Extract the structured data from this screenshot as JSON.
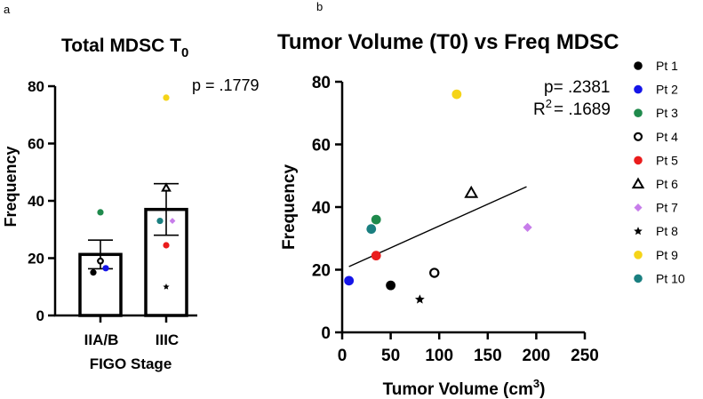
{
  "panel_labels": {
    "a": "a",
    "b": "b"
  },
  "chart_data": [
    {
      "type": "bar",
      "title": "Total MDSC T",
      "title_subscript": "0",
      "xlabel": "FIGO Stage",
      "ylabel": "Frequency",
      "ylim": [
        0,
        80
      ],
      "yticks": [
        "0",
        "20",
        "40",
        "60",
        "80"
      ],
      "categories": [
        "IIA/B",
        "IIIC"
      ],
      "values": [
        21.3,
        37
      ],
      "errors": [
        5,
        9
      ],
      "p_value_text": "p = .1779",
      "points": [
        {
          "patient": "Pt 1",
          "group": 0,
          "y": 15
        },
        {
          "patient": "Pt 2",
          "group": 0,
          "y": 16.5
        },
        {
          "patient": "Pt 3",
          "group": 0,
          "y": 36
        },
        {
          "patient": "Pt 4",
          "group": 0,
          "y": 19
        },
        {
          "patient": "Pt 5",
          "group": 1,
          "y": 24.5
        },
        {
          "patient": "Pt 6",
          "group": 1,
          "y": 44.5
        },
        {
          "patient": "Pt 7",
          "group": 1,
          "y": 33
        },
        {
          "patient": "Pt 8",
          "group": 1,
          "y": 10
        },
        {
          "patient": "Pt 9",
          "group": 1,
          "y": 76
        },
        {
          "patient": "Pt 10",
          "group": 1,
          "y": 33
        }
      ]
    },
    {
      "type": "scatter",
      "title": "Tumor Volume (T0) vs Freq MDSC",
      "xlabel": "Tumor Volume (cm",
      "xlabel_superscript": "3",
      "xlabel_suffix": ")",
      "ylabel": "Frequency",
      "xlim": [
        0,
        250
      ],
      "ylim": [
        0,
        80
      ],
      "xticks": [
        "0",
        "50",
        "100",
        "150",
        "200",
        "250"
      ],
      "yticks": [
        "0",
        "20",
        "40",
        "60",
        "80"
      ],
      "p_value_text": "p= .2381",
      "r2_label": "R",
      "r2_superscript": "2",
      "r2_value_text": "= .1689",
      "regression": {
        "x": [
          7,
          190
        ],
        "y": [
          21,
          46.5
        ]
      },
      "points": [
        {
          "patient": "Pt 1",
          "x": 50,
          "y": 15
        },
        {
          "patient": "Pt 2",
          "x": 7,
          "y": 16.5
        },
        {
          "patient": "Pt 3",
          "x": 35,
          "y": 36
        },
        {
          "patient": "Pt 4",
          "x": 95,
          "y": 19
        },
        {
          "patient": "Pt 5",
          "x": 35,
          "y": 24.5
        },
        {
          "patient": "Pt 6",
          "x": 133,
          "y": 44.5
        },
        {
          "patient": "Pt 7",
          "x": 191,
          "y": 33.5
        },
        {
          "patient": "Pt 8",
          "x": 80,
          "y": 10.5
        },
        {
          "patient": "Pt 9",
          "x": 118,
          "y": 76
        },
        {
          "patient": "Pt 10",
          "x": 30,
          "y": 33
        }
      ]
    }
  ],
  "legend": [
    {
      "label": "Pt 1",
      "marker": "circle",
      "color": "#000000"
    },
    {
      "label": "Pt 2",
      "marker": "circle",
      "color": "#1515e8"
    },
    {
      "label": "Pt 3",
      "marker": "circle",
      "color": "#1f8a4c"
    },
    {
      "label": "Pt 4",
      "marker": "open-circle",
      "color": "#000000"
    },
    {
      "label": "Pt 5",
      "marker": "circle",
      "color": "#ea1c1c"
    },
    {
      "label": "Pt 6",
      "marker": "open-triangle",
      "color": "#000000"
    },
    {
      "label": "Pt 7",
      "marker": "diamond",
      "color": "#c77dea"
    },
    {
      "label": "Pt 8",
      "marker": "star",
      "color": "#000000"
    },
    {
      "label": "Pt 9",
      "marker": "circle",
      "color": "#f5d418"
    },
    {
      "label": "Pt 10",
      "marker": "circle",
      "color": "#1a7f80"
    }
  ]
}
